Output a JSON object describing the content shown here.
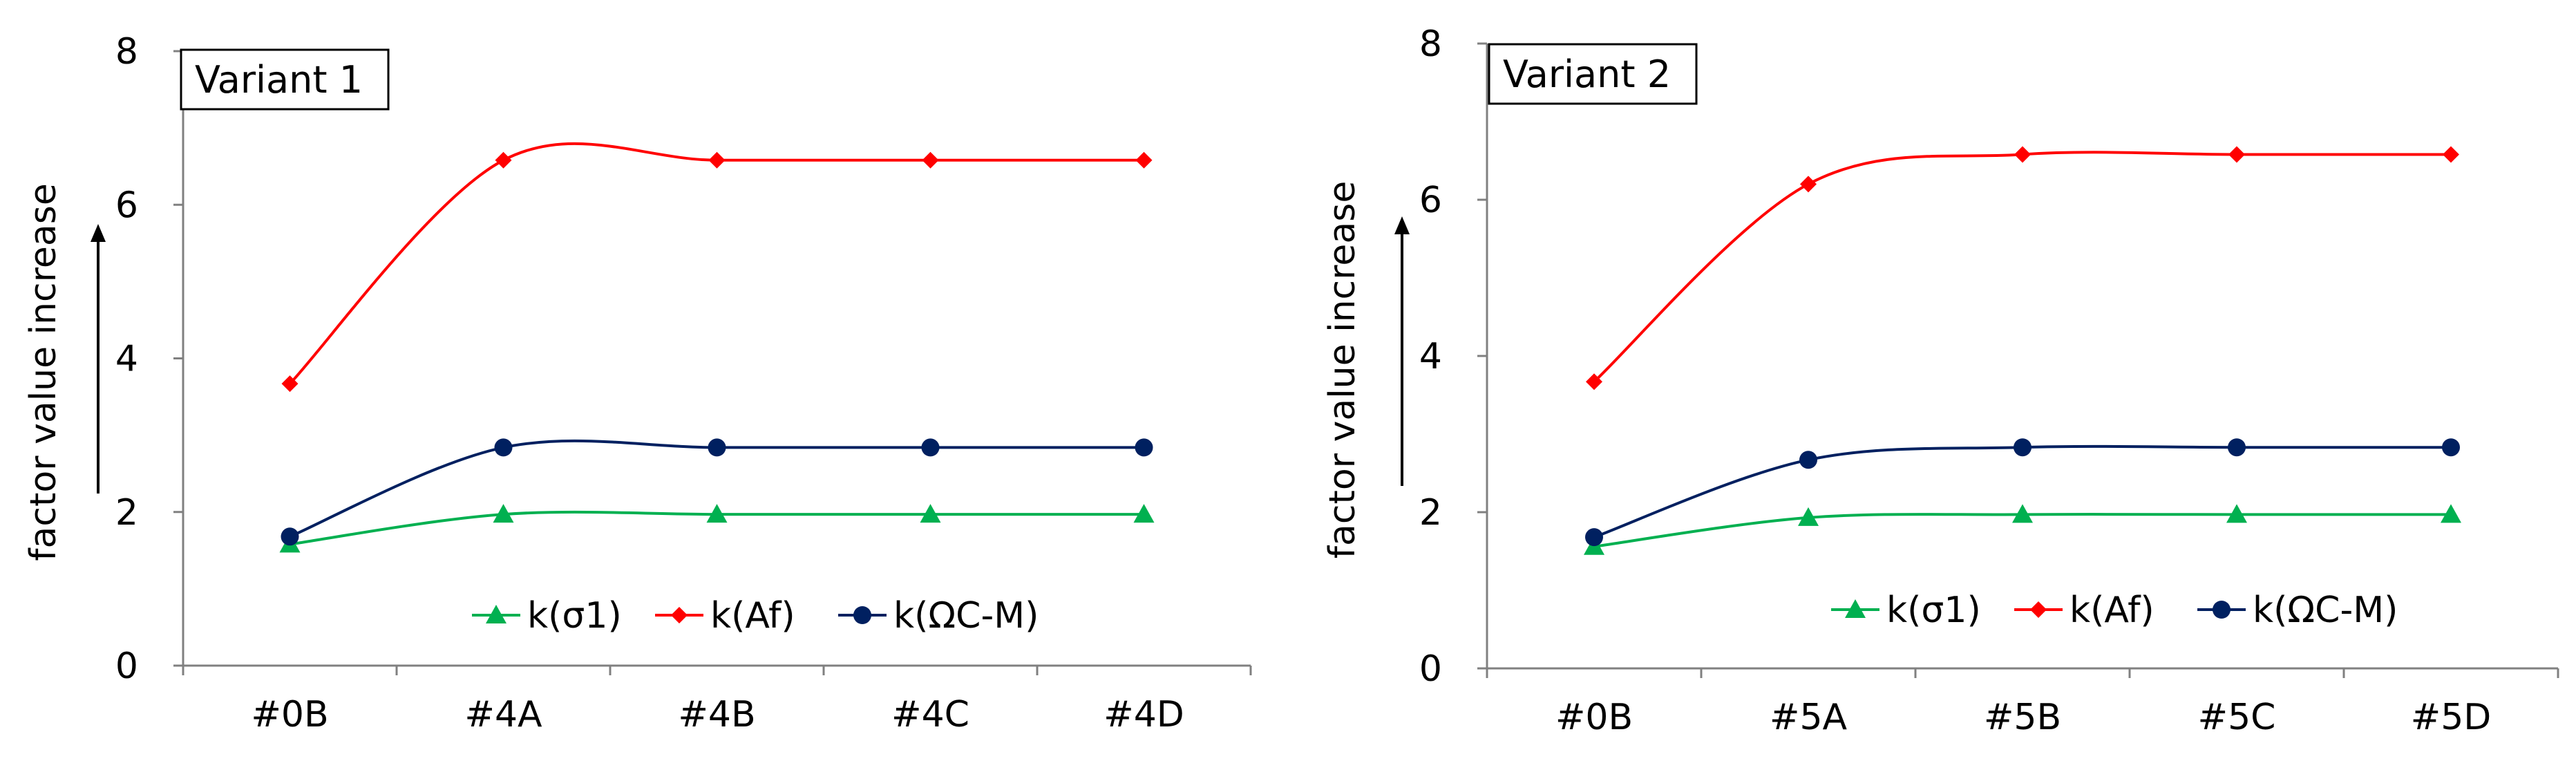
{
  "chart_data": [
    {
      "type": "line",
      "title": "Variant 1",
      "ylabel": "factor value increase",
      "xlabel": "",
      "ylim": [
        0,
        8
      ],
      "yticks": [
        0,
        2,
        4,
        6,
        8
      ],
      "categories": [
        "#0B",
        "#4A",
        "#4B",
        "#4C",
        "#4D"
      ],
      "smooth": true,
      "legend": "bottom-right",
      "series": [
        {
          "name": "k(σ1)",
          "color": "#00b050",
          "marker": "triangle",
          "values": [
            1.58,
            1.97,
            1.97,
            1.97,
            1.97
          ]
        },
        {
          "name": "k(Af)",
          "color": "#ff0000",
          "marker": "diamond",
          "values": [
            3.67,
            6.58,
            6.58,
            6.58,
            6.58
          ]
        },
        {
          "name": "k(ΩC-M)",
          "color": "#002060",
          "marker": "circle",
          "values": [
            1.68,
            2.84,
            2.84,
            2.84,
            2.84
          ]
        }
      ]
    },
    {
      "type": "line",
      "title": "Variant 2",
      "ylabel": "factor value increase",
      "xlabel": "",
      "ylim": [
        0,
        8
      ],
      "yticks": [
        0,
        2,
        4,
        6,
        8
      ],
      "categories": [
        "#0B",
        "#5A",
        "#5B",
        "#5C",
        "#5D"
      ],
      "smooth": true,
      "legend": "bottom-right",
      "series": [
        {
          "name": "k(σ1)",
          "color": "#00b050",
          "marker": "triangle",
          "values": [
            1.56,
            1.93,
            1.97,
            1.97,
            1.97
          ]
        },
        {
          "name": "k(Af)",
          "color": "#ff0000",
          "marker": "diamond",
          "values": [
            3.67,
            6.2,
            6.58,
            6.58,
            6.58
          ]
        },
        {
          "name": "k(ΩC-M)",
          "color": "#002060",
          "marker": "circle",
          "values": [
            1.68,
            2.67,
            2.83,
            2.83,
            2.83
          ]
        }
      ]
    }
  ]
}
